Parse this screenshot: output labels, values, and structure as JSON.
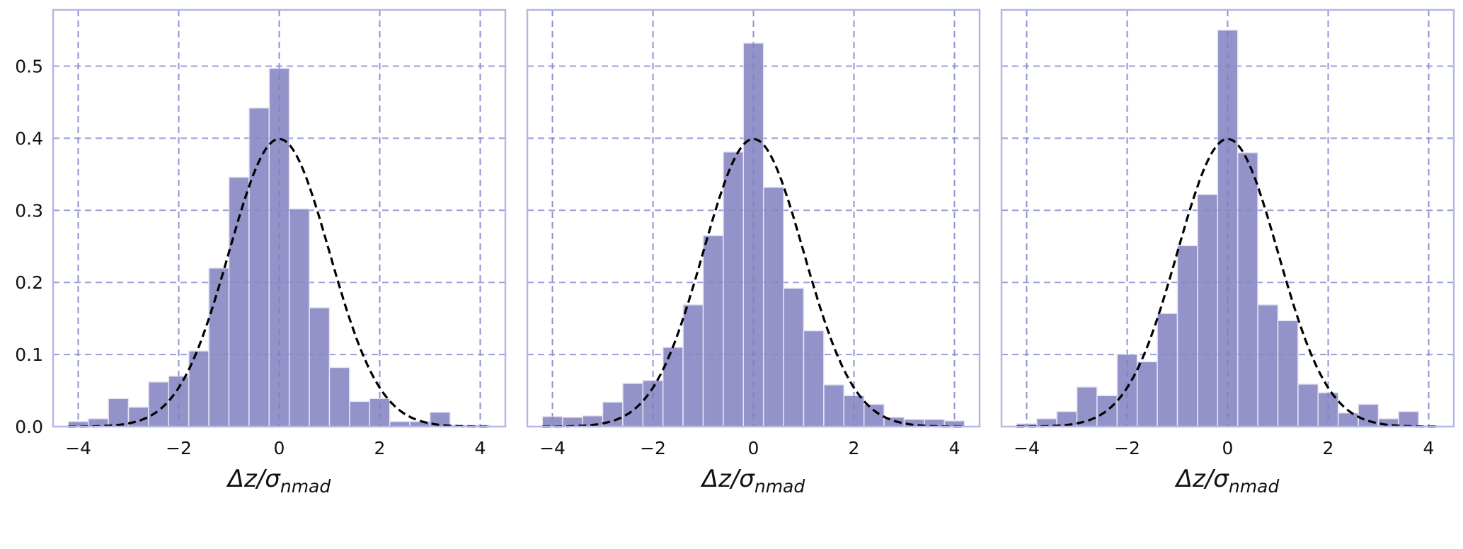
{
  "chart_data": [
    {
      "type": "bar",
      "subtype": "histogram",
      "bin_edges_start": -4.2,
      "bin_width": 0.4,
      "values": [
        0.007,
        0.011,
        0.039,
        0.027,
        0.062,
        0.07,
        0.105,
        0.22,
        0.346,
        0.442,
        0.497,
        0.302,
        0.165,
        0.082,
        0.035,
        0.039,
        0.007,
        0.007,
        0.02,
        0.002,
        0.002
      ],
      "overlay": {
        "type": "line",
        "style": "dashed",
        "function": "standard normal pdf",
        "mean": 0,
        "sigma": 1
      },
      "xlabel": "Δz/σ",
      "xlabel_sub": "nmad",
      "ylabel": "",
      "xlim": [
        -4.5,
        4.5
      ],
      "ylim": [
        0,
        0.578
      ],
      "xticks": [
        "−4",
        "−2",
        "0",
        "2",
        "4"
      ],
      "yticks": [
        "0.0",
        "0.1",
        "0.2",
        "0.3",
        "0.4",
        "0.5"
      ],
      "grid": true
    },
    {
      "type": "bar",
      "subtype": "histogram",
      "bin_edges_start": -4.2,
      "bin_width": 0.4,
      "values": [
        0.014,
        0.013,
        0.015,
        0.034,
        0.06,
        0.064,
        0.11,
        0.169,
        0.265,
        0.381,
        0.532,
        0.332,
        0.192,
        0.133,
        0.058,
        0.043,
        0.031,
        0.013,
        0.01,
        0.01,
        0.008
      ],
      "overlay": {
        "type": "line",
        "style": "dashed",
        "function": "standard normal pdf",
        "mean": 0,
        "sigma": 1
      },
      "xlabel": "Δz/σ",
      "xlabel_sub": "nmad",
      "ylabel": "",
      "xlim": [
        -4.5,
        4.5
      ],
      "ylim": [
        0,
        0.578
      ],
      "xticks": [
        "−4",
        "−2",
        "0",
        "2",
        "4"
      ],
      "yticks": [],
      "grid": true
    },
    {
      "type": "bar",
      "subtype": "histogram",
      "bin_edges_start": -4.2,
      "bin_width": 0.4,
      "values": [
        0.004,
        0.011,
        0.021,
        0.055,
        0.043,
        0.1,
        0.09,
        0.157,
        0.251,
        0.322,
        0.55,
        0.38,
        0.169,
        0.147,
        0.059,
        0.047,
        0.019,
        0.031,
        0.011,
        0.021,
        0.001
      ],
      "overlay": {
        "type": "line",
        "style": "dashed",
        "function": "standard normal pdf",
        "mean": 0,
        "sigma": 1
      },
      "xlabel": "Δz/σ",
      "xlabel_sub": "nmad",
      "ylabel": "",
      "xlim": [
        -4.5,
        4.5
      ],
      "ylim": [
        0,
        0.578
      ],
      "xticks": [
        "−4",
        "−2",
        "0",
        "2",
        "4"
      ],
      "yticks": [],
      "grid": true
    }
  ],
  "colors": {
    "bar": "#9191c8",
    "bar_edge": "#e6e6f4",
    "grid": "#a9aee6",
    "frame": "#b3b8e3",
    "curve": "#000000"
  }
}
